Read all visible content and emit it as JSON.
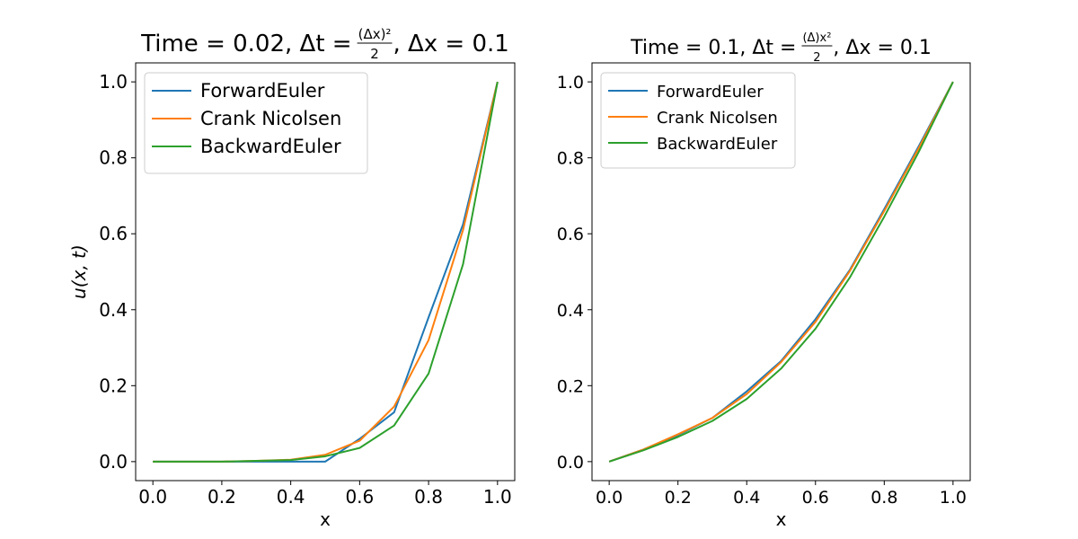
{
  "chart_data": [
    {
      "type": "line",
      "title": {
        "prefix": "Time",
        "value": "= 0.02,",
        "dt_label": "Δt =",
        "frac_num": "(Δx)²",
        "frac_den": "2",
        "suffix": ", Δx = 0.1"
      },
      "xlabel": "x",
      "ylabel": "u(x, t)",
      "xlim": [
        -0.05,
        1.05
      ],
      "ylim": [
        -0.05,
        1.05
      ],
      "xticks": [
        "0.0",
        "0.2",
        "0.4",
        "0.6",
        "0.8",
        "1.0"
      ],
      "yticks": [
        "0.0",
        "0.2",
        "0.4",
        "0.6",
        "0.8",
        "1.0"
      ],
      "legend": "top-left",
      "grid": false,
      "x": [
        0.0,
        0.1,
        0.2,
        0.3,
        0.4,
        0.5,
        0.6,
        0.7,
        0.8,
        0.9,
        1.0
      ],
      "series": [
        {
          "name": "ForwardEuler",
          "color": "#1f77b4",
          "values": [
            0.0,
            0.0,
            0.0,
            0.0,
            0.0,
            0.0,
            0.06,
            0.13,
            0.38,
            0.625,
            1.0
          ]
        },
        {
          "name": "Crank Nicolsen",
          "color": "#ff7f0e",
          "values": [
            0.0,
            0.0,
            0.0,
            0.002,
            0.005,
            0.018,
            0.055,
            0.145,
            0.32,
            0.61,
            1.0
          ]
        },
        {
          "name": "BackwardEuler",
          "color": "#2ca02c",
          "values": [
            0.0,
            0.0,
            0.0,
            0.002,
            0.004,
            0.014,
            0.036,
            0.095,
            0.232,
            0.52,
            1.0
          ]
        }
      ]
    },
    {
      "type": "line",
      "title": {
        "prefix": "Time",
        "value": "= 0.1,",
        "dt_label": "Δt =",
        "frac_num": "(Δ)x²",
        "frac_den": "2",
        "suffix": ", Δx = 0.1"
      },
      "xlabel": "x",
      "ylabel": "",
      "xlim": [
        -0.05,
        1.05
      ],
      "ylim": [
        -0.05,
        1.05
      ],
      "xticks": [
        "0.0",
        "0.2",
        "0.4",
        "0.6",
        "0.8",
        "1.0"
      ],
      "yticks": [
        "0.0",
        "0.2",
        "0.4",
        "0.6",
        "0.8",
        "1.0"
      ],
      "legend": "top-left",
      "grid": false,
      "x": [
        0.0,
        0.1,
        0.2,
        0.3,
        0.4,
        0.5,
        0.6,
        0.7,
        0.8,
        0.9,
        1.0
      ],
      "series": [
        {
          "name": "ForwardEuler",
          "color": "#1f77b4",
          "values": [
            0.0,
            0.032,
            0.07,
            0.115,
            0.185,
            0.265,
            0.375,
            0.505,
            0.665,
            0.83,
            1.0
          ]
        },
        {
          "name": "Crank Nicolsen",
          "color": "#ff7f0e",
          "values": [
            0.0,
            0.032,
            0.072,
            0.115,
            0.178,
            0.262,
            0.368,
            0.502,
            0.66,
            0.825,
            1.0
          ]
        },
        {
          "name": "BackwardEuler",
          "color": "#2ca02c",
          "values": [
            0.0,
            0.03,
            0.065,
            0.107,
            0.165,
            0.245,
            0.35,
            0.485,
            0.645,
            0.815,
            1.0
          ]
        }
      ]
    }
  ]
}
